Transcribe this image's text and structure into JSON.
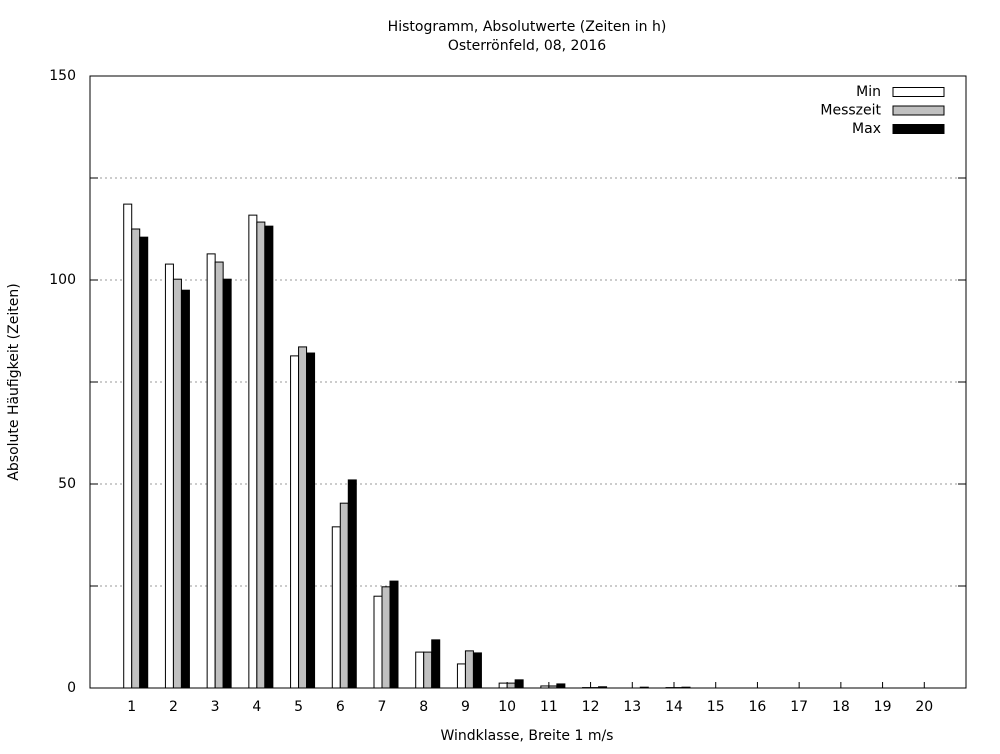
{
  "chart_data": {
    "type": "bar",
    "title": "Histogramm, Absolutwerte (Zeiten in h)",
    "subtitle": "Osterrönfeld, 08, 2016",
    "x_label": "Windklasse, Breite 1 m/s",
    "y_label": "Absolute Häufigkeit (Zeiten)",
    "categories": [
      "1",
      "2",
      "3",
      "4",
      "5",
      "6",
      "7",
      "8",
      "9",
      "10",
      "11",
      "12",
      "13",
      "14",
      "15",
      "16",
      "17",
      "18",
      "19",
      "20"
    ],
    "series": [
      {
        "name": "Min",
        "color": "#ffffff",
        "values": [
          118.6,
          103.9,
          106.4,
          115.9,
          81.4,
          39.5,
          22.5,
          8.8,
          5.9,
          1.2,
          0.5,
          0.1,
          0,
          0.1,
          0,
          0,
          0,
          0,
          0,
          0
        ]
      },
      {
        "name": "Messzeit",
        "color": "#c0c0c0",
        "values": [
          112.5,
          100.2,
          104.4,
          114.2,
          83.6,
          45.3,
          24.8,
          8.8,
          9.1,
          1.2,
          0.5,
          0.1,
          0,
          0.1,
          0,
          0,
          0,
          0,
          0,
          0
        ]
      },
      {
        "name": "Max",
        "color": "#000000",
        "values": [
          110.5,
          97.5,
          100.2,
          113.2,
          82.1,
          51.0,
          26.2,
          11.8,
          8.6,
          2.0,
          1.0,
          0.3,
          0.2,
          0.2,
          0,
          0,
          0,
          0,
          0,
          0
        ]
      }
    ],
    "ylim": [
      0,
      150
    ],
    "yticks": [
      0,
      50,
      100,
      150
    ],
    "yminorticks": [
      25,
      75,
      125
    ],
    "grid": true,
    "legend": "top-right"
  }
}
